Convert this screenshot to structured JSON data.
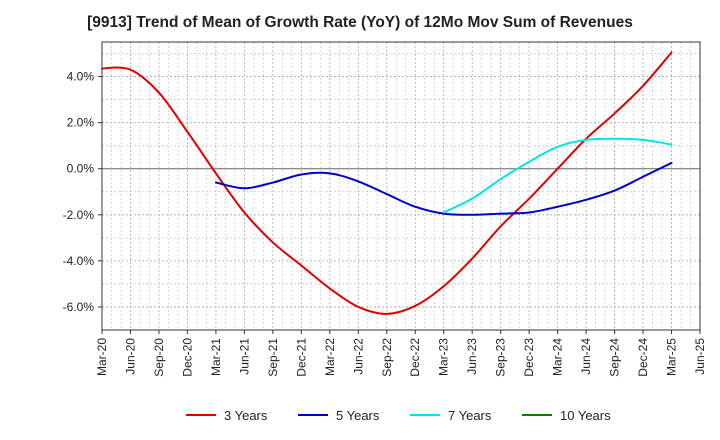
{
  "chart_data": {
    "type": "line",
    "title": "[9913]  Trend of Mean of Growth Rate (YoY) of 12Mo Mov Sum of Revenues",
    "xlabel": "",
    "ylabel": "",
    "categories": [
      "Mar-20",
      "Jun-20",
      "Sep-20",
      "Dec-20",
      "Mar-21",
      "Jun-21",
      "Sep-21",
      "Dec-21",
      "Mar-22",
      "Jun-22",
      "Sep-22",
      "Dec-22",
      "Mar-23",
      "Jun-23",
      "Sep-23",
      "Dec-23",
      "Mar-24",
      "Jun-24",
      "Sep-24",
      "Dec-24",
      "Mar-25",
      "Jun-25"
    ],
    "ylim": [
      -7,
      5.5
    ],
    "yticks": [
      4,
      2,
      0,
      -2,
      -4,
      -6
    ],
    "ytick_labels": [
      "4.0%",
      "2.0%",
      "0.0%",
      "-2.0%",
      "-4.0%",
      "-6.0%"
    ],
    "grid": true,
    "legend_position": "bottom",
    "series": [
      {
        "name": "3 Years",
        "color": "#e00000",
        "values": [
          4.35,
          4.3,
          3.3,
          1.6,
          -0.2,
          -1.9,
          -3.2,
          -4.2,
          -5.2,
          -6.0,
          -6.3,
          -5.95,
          -5.1,
          -3.9,
          -2.5,
          -1.3,
          0.0,
          1.3,
          2.4,
          3.6,
          5.05,
          null
        ]
      },
      {
        "name": "5 Years",
        "color": "#0000cc",
        "values": [
          null,
          null,
          null,
          null,
          -0.6,
          -0.85,
          -0.6,
          -0.25,
          -0.2,
          -0.55,
          -1.1,
          -1.65,
          -1.95,
          -2.0,
          -1.95,
          -1.9,
          -1.65,
          -1.35,
          -0.95,
          -0.35,
          0.25,
          null
        ]
      },
      {
        "name": "7 Years",
        "color": "#00e5e5",
        "values": [
          null,
          null,
          null,
          null,
          null,
          null,
          null,
          null,
          null,
          null,
          null,
          null,
          -1.9,
          -1.3,
          -0.45,
          0.3,
          0.95,
          1.25,
          1.3,
          1.25,
          1.05,
          null
        ]
      },
      {
        "name": "10 Years",
        "color": "#008000",
        "values": [
          null,
          null,
          null,
          null,
          null,
          null,
          null,
          null,
          null,
          null,
          null,
          null,
          null,
          null,
          null,
          null,
          null,
          null,
          null,
          null,
          null,
          null
        ]
      }
    ]
  }
}
